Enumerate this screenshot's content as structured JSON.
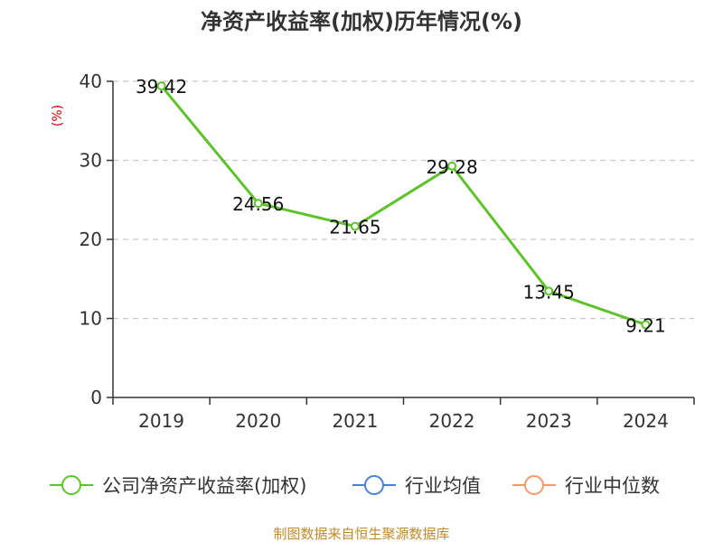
{
  "chart_data": {
    "type": "line",
    "title": "净资产收益率(加权)历年情况(%)",
    "ylabel": "(%)",
    "xlabel": "",
    "categories": [
      "2019",
      "2020",
      "2021",
      "2022",
      "2023",
      "2024"
    ],
    "ylim": [
      0,
      40
    ],
    "yticks": [
      0,
      10,
      20,
      30,
      40
    ],
    "grid": true,
    "legend_position": "bottom",
    "series": [
      {
        "name": "公司净资产收益率(加权)",
        "values": [
          39.42,
          24.56,
          21.65,
          29.28,
          13.45,
          9.21
        ],
        "labels": [
          "39.42",
          "24.56",
          "21.65",
          "29.28",
          "13.45",
          "9.21"
        ],
        "color": "#5ec22a"
      }
    ],
    "legend": [
      {
        "name": "公司净资产收益率(加权)",
        "color": "#5ec22a"
      },
      {
        "name": "行业均值",
        "color": "#4a7fd4"
      },
      {
        "name": "行业中位数",
        "color": "#f39a6b"
      }
    ]
  },
  "source": "制图数据来自恒生聚源数据库"
}
